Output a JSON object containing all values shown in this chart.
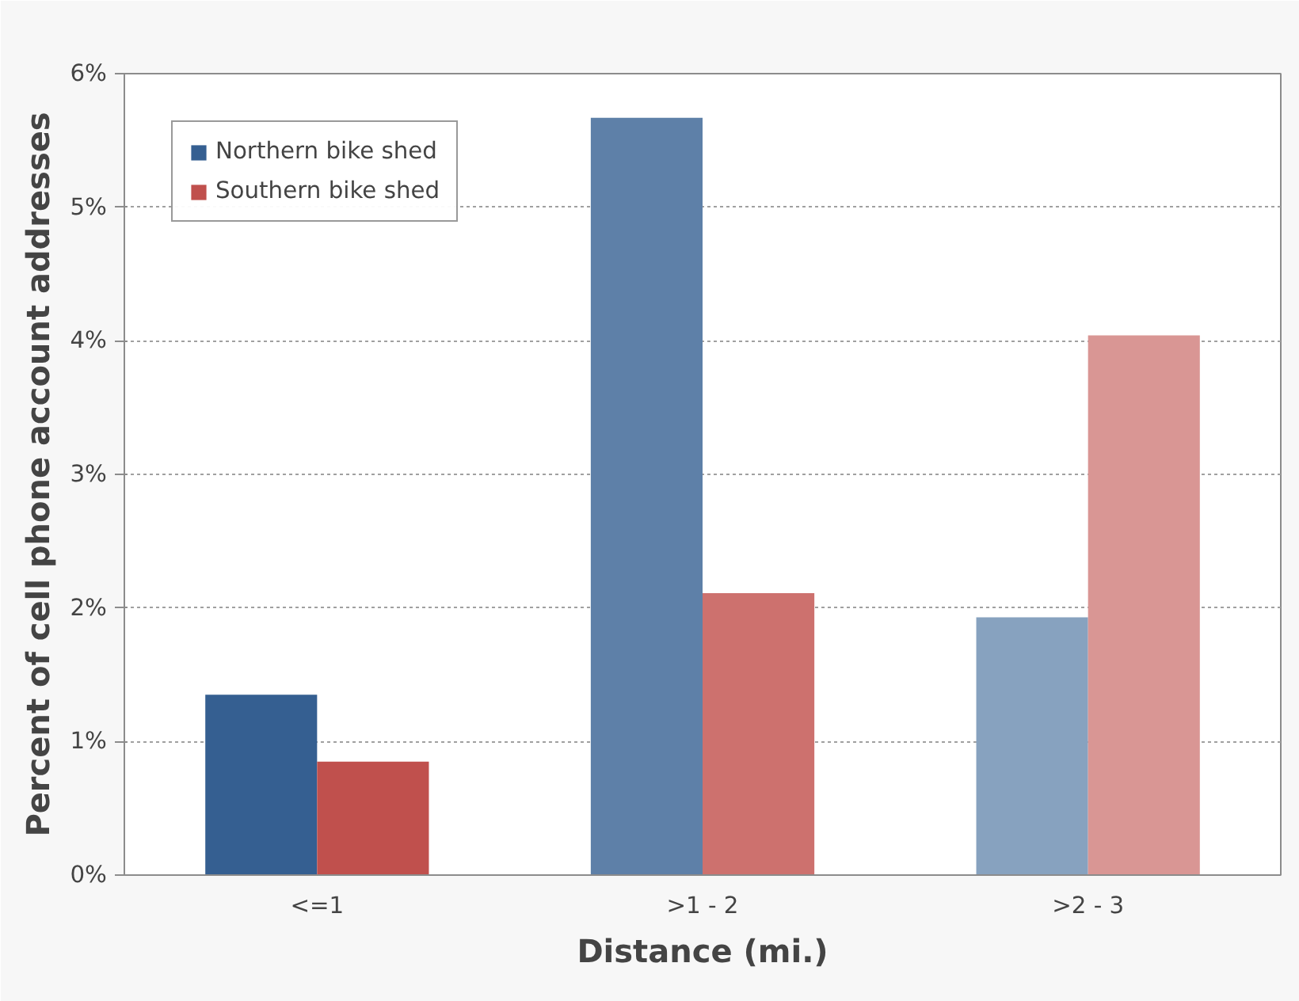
{
  "chart_data": {
    "type": "bar",
    "xlabel": "Distance (mi.)",
    "ylabel": "Percent of cell phone account addresses",
    "categories": [
      "<=1",
      ">1 - 2",
      ">2 - 3"
    ],
    "series": [
      {
        "name": "Northern bike shed",
        "colors": [
          "#355f91",
          "#5e80a8",
          "#87a2bf"
        ],
        "values": [
          1.35,
          5.67,
          1.93
        ]
      },
      {
        "name": "Southern bike shed",
        "colors": [
          "#c0504d",
          "#cd716e",
          "#d99694"
        ],
        "values": [
          0.85,
          2.11,
          4.04
        ]
      }
    ],
    "ylim": [
      0,
      6
    ],
    "yticks": [
      {
        "value": 0,
        "label": "0%"
      },
      {
        "value": 1,
        "label": "1%"
      },
      {
        "value": 2,
        "label": "2%"
      },
      {
        "value": 3,
        "label": "3%"
      },
      {
        "value": 4,
        "label": "4%"
      },
      {
        "value": 5,
        "label": "5%"
      },
      {
        "value": 6,
        "label": "6%"
      }
    ],
    "grid": "y",
    "legend": "top left"
  }
}
